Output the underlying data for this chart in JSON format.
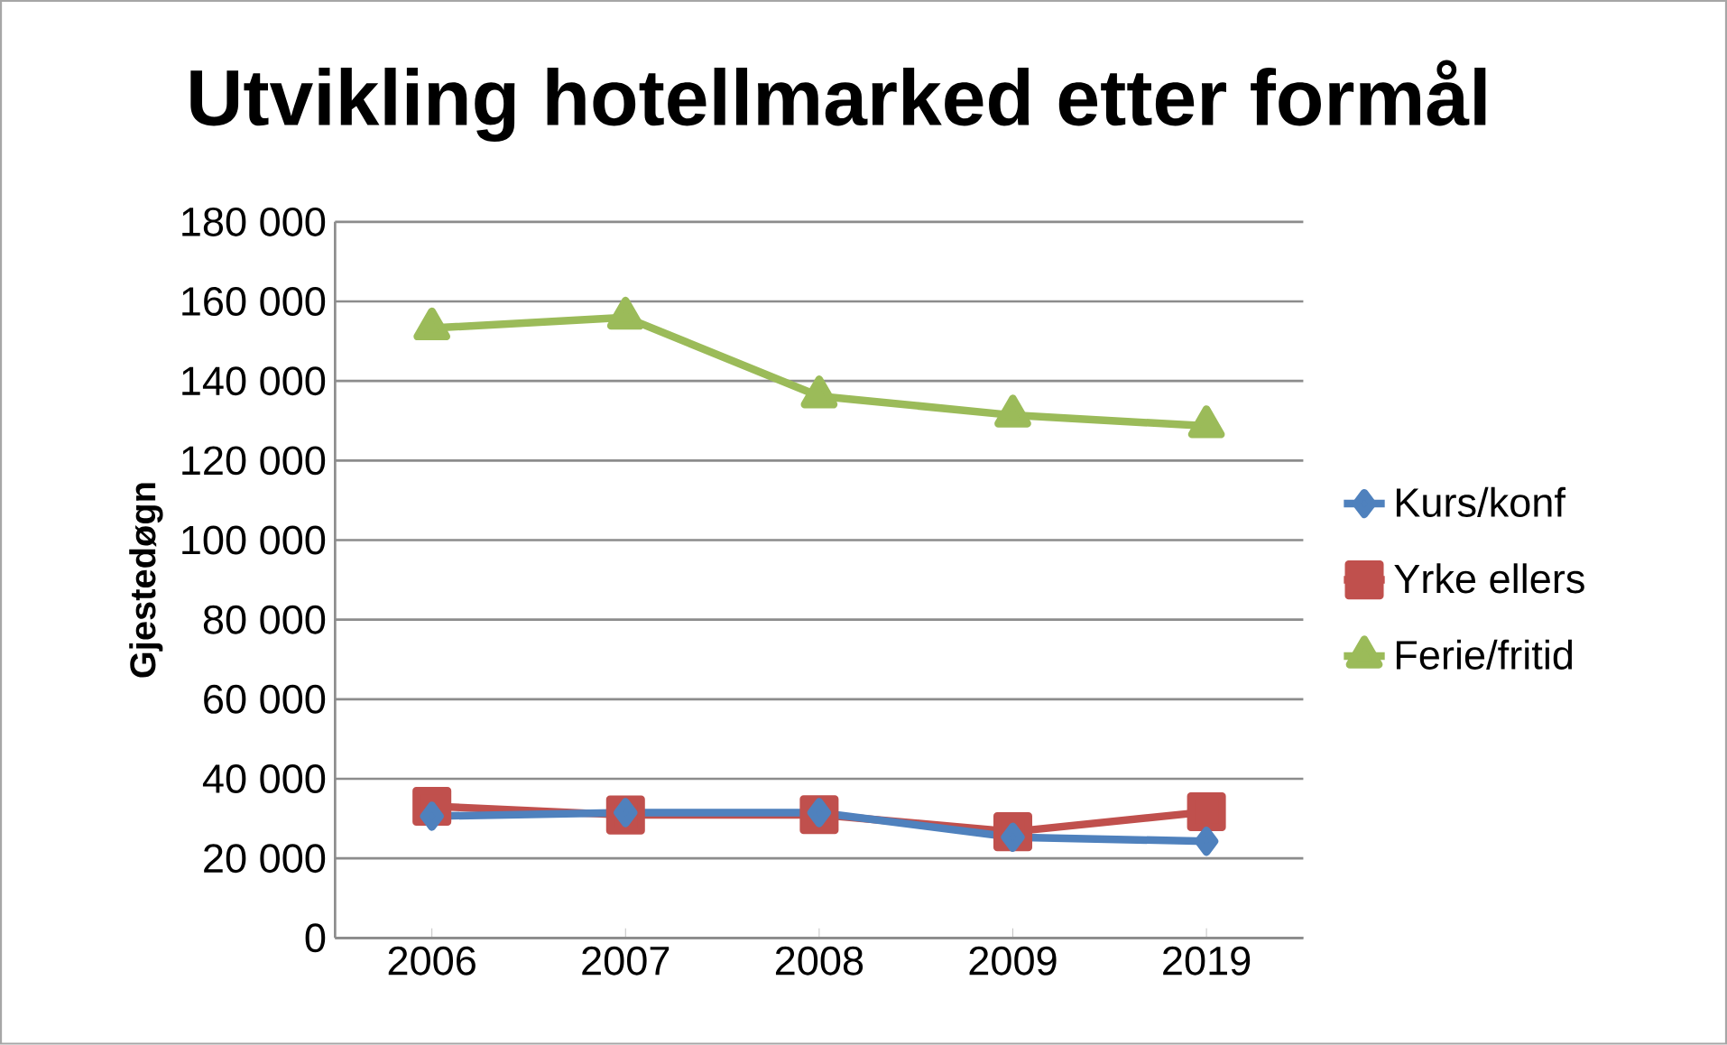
{
  "chart_data": {
    "type": "line",
    "title": "Utvikling hotellmarked etter formål",
    "ylabel": "Gjestedøgn",
    "categories": [
      "2006",
      "2007",
      "2008",
      "2009",
      "2019"
    ],
    "series": [
      {
        "name": "Kurs/konf",
        "color": "#4f81bd",
        "marker": "diamond",
        "values": [
          30600,
          31500,
          31500,
          25300,
          24300
        ]
      },
      {
        "name": "Yrke ellers",
        "color": "#c0504d",
        "marker": "square",
        "values": [
          33100,
          30900,
          31000,
          26700,
          31700
        ]
      },
      {
        "name": "Ferie/fritid",
        "color": "#9bbb59",
        "marker": "triangle",
        "values": [
          153300,
          156000,
          136200,
          131400,
          128700
        ]
      }
    ],
    "ylim": [
      0,
      180000
    ],
    "yticks": [
      {
        "value": 0,
        "label": "0"
      },
      {
        "value": 20000,
        "label": "20 000"
      },
      {
        "value": 40000,
        "label": "40 000"
      },
      {
        "value": 60000,
        "label": "60 000"
      },
      {
        "value": 80000,
        "label": "80 000"
      },
      {
        "value": 100000,
        "label": "100 000"
      },
      {
        "value": 120000,
        "label": "120 000"
      },
      {
        "value": 140000,
        "label": "140 000"
      },
      {
        "value": 160000,
        "label": "160 000"
      },
      {
        "value": 180000,
        "label": "180 000"
      }
    ],
    "grid": "y",
    "legend": "right"
  }
}
